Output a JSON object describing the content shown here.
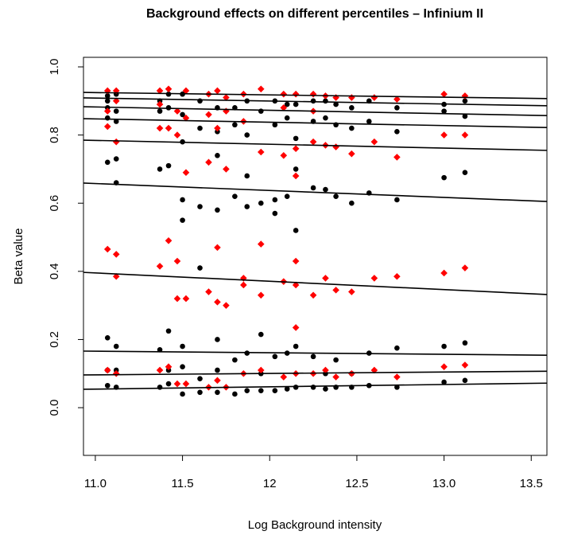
{
  "chart_data": {
    "type": "scatter",
    "title": "Background effects on different percentiles – Infinium II",
    "x_label": "Log Background intensity",
    "y_label": "Beta value",
    "xlim": [
      10.932,
      13.59
    ],
    "ylim": [
      -0.14,
      1.028
    ],
    "xticks": [
      {
        "value": 11,
        "label": "11.0"
      },
      11.5,
      12.0,
      12.5,
      {
        "value": 13,
        "label": "13.0"
      },
      13.5
    ],
    "yticks": [
      {
        "value": 0,
        "label": "0.0"
      },
      0.2,
      0.4,
      0.6,
      0.8,
      {
        "value": 1,
        "label": "1.0"
      }
    ],
    "grid": false,
    "series": [
      {
        "color": "#000000",
        "marker": "circle",
        "x": [
          11.07,
          11.07,
          11.07,
          11.07,
          11.07,
          11.07,
          11.07,
          11.07,
          11.12,
          11.12,
          11.12,
          11.12,
          11.12,
          11.12,
          11.12,
          11.12,
          11.37,
          11.37,
          11.37,
          11.37,
          11.37,
          11.42,
          11.42,
          11.42,
          11.42,
          11.42,
          11.42,
          11.5,
          11.5,
          11.5,
          11.5,
          11.5,
          11.5,
          11.5,
          11.5,
          11.6,
          11.6,
          11.6,
          11.6,
          11.6,
          11.6,
          11.7,
          11.7,
          11.7,
          11.7,
          11.7,
          11.7,
          11.7,
          11.8,
          11.8,
          11.8,
          11.8,
          11.8,
          11.87,
          11.87,
          11.87,
          11.87,
          11.87,
          11.87,
          11.95,
          11.95,
          11.95,
          11.95,
          11.95,
          12.03,
          12.03,
          12.03,
          12.03,
          12.03,
          12.03,
          12.1,
          12.1,
          12.1,
          12.1,
          12.1,
          12.15,
          12.15,
          12.15,
          12.15,
          12.15,
          12.15,
          12.25,
          12.25,
          12.25,
          12.25,
          12.25,
          12.32,
          12.32,
          12.32,
          12.32,
          12.32,
          12.38,
          12.38,
          12.38,
          12.38,
          12.38,
          12.47,
          12.47,
          12.47,
          12.47,
          12.47,
          12.57,
          12.57,
          12.57,
          12.57,
          12.57,
          12.73,
          12.73,
          12.73,
          12.73,
          12.73,
          13.0,
          13.0,
          13.0,
          13.0,
          13.0,
          13.12,
          13.12,
          13.12,
          13.12,
          13.12
        ],
        "values": [
          0.065,
          0.11,
          0.205,
          0.72,
          0.85,
          0.88,
          0.9,
          0.915,
          0.06,
          0.11,
          0.18,
          0.66,
          0.73,
          0.84,
          0.87,
          0.92,
          0.06,
          0.17,
          0.7,
          0.87,
          0.9,
          0.07,
          0.11,
          0.225,
          0.71,
          0.88,
          0.92,
          0.04,
          0.12,
          0.18,
          0.55,
          0.61,
          0.78,
          0.86,
          0.92,
          0.045,
          0.085,
          0.41,
          0.59,
          0.82,
          0.9,
          0.045,
          0.11,
          0.2,
          0.58,
          0.74,
          0.81,
          0.88,
          0.04,
          0.14,
          0.62,
          0.83,
          0.88,
          0.05,
          0.16,
          0.59,
          0.68,
          0.8,
          0.9,
          0.05,
          0.1,
          0.215,
          0.6,
          0.87,
          0.05,
          0.15,
          0.57,
          0.61,
          0.83,
          0.9,
          0.055,
          0.16,
          0.62,
          0.85,
          0.89,
          0.06,
          0.18,
          0.52,
          0.7,
          0.79,
          0.89,
          0.06,
          0.15,
          0.645,
          0.84,
          0.9,
          0.055,
          0.1,
          0.64,
          0.85,
          0.9,
          0.06,
          0.14,
          0.62,
          0.83,
          0.89,
          0.06,
          0.1,
          0.6,
          0.82,
          0.88,
          0.065,
          0.16,
          0.63,
          0.84,
          0.9,
          0.06,
          0.175,
          0.61,
          0.81,
          0.88,
          0.075,
          0.18,
          0.675,
          0.87,
          0.89,
          0.08,
          0.19,
          0.69,
          0.855,
          0.9
        ]
      },
      {
        "color": "#ff0000",
        "marker": "diamond",
        "x": [
          11.07,
          11.07,
          11.07,
          11.07,
          11.07,
          11.12,
          11.12,
          11.12,
          11.12,
          11.12,
          11.12,
          11.37,
          11.37,
          11.37,
          11.37,
          11.37,
          11.42,
          11.42,
          11.42,
          11.42,
          11.47,
          11.47,
          11.47,
          11.47,
          11.47,
          11.52,
          11.52,
          11.52,
          11.52,
          11.52,
          11.65,
          11.65,
          11.65,
          11.65,
          11.65,
          11.7,
          11.7,
          11.7,
          11.7,
          11.7,
          11.75,
          11.75,
          11.75,
          11.75,
          11.75,
          11.85,
          11.85,
          11.85,
          11.85,
          11.85,
          11.95,
          11.95,
          11.95,
          11.95,
          11.95,
          12.08,
          12.08,
          12.08,
          12.08,
          12.08,
          12.15,
          12.15,
          12.15,
          12.15,
          12.15,
          12.15,
          12.15,
          12.25,
          12.25,
          12.25,
          12.25,
          12.25,
          12.32,
          12.32,
          12.32,
          12.32,
          12.38,
          12.38,
          12.38,
          12.38,
          12.47,
          12.47,
          12.47,
          12.47,
          12.6,
          12.6,
          12.6,
          12.6,
          12.73,
          12.73,
          12.73,
          12.73,
          13.0,
          13.0,
          13.0,
          13.0,
          13.12,
          13.12,
          13.12,
          13.12
        ],
        "values": [
          0.11,
          0.465,
          0.825,
          0.87,
          0.93,
          0.1,
          0.385,
          0.45,
          0.78,
          0.9,
          0.93,
          0.11,
          0.415,
          0.82,
          0.89,
          0.93,
          0.12,
          0.49,
          0.82,
          0.935,
          0.07,
          0.32,
          0.43,
          0.8,
          0.87,
          0.07,
          0.32,
          0.69,
          0.85,
          0.93,
          0.06,
          0.34,
          0.72,
          0.86,
          0.92,
          0.08,
          0.31,
          0.47,
          0.82,
          0.93,
          0.06,
          0.3,
          0.7,
          0.87,
          0.91,
          0.1,
          0.36,
          0.38,
          0.84,
          0.92,
          0.11,
          0.33,
          0.48,
          0.75,
          0.935,
          0.09,
          0.37,
          0.74,
          0.88,
          0.92,
          0.1,
          0.235,
          0.36,
          0.43,
          0.68,
          0.76,
          0.92,
          0.1,
          0.33,
          0.78,
          0.87,
          0.92,
          0.11,
          0.38,
          0.77,
          0.915,
          0.09,
          0.345,
          0.765,
          0.91,
          0.1,
          0.34,
          0.745,
          0.91,
          0.11,
          0.38,
          0.78,
          0.91,
          0.09,
          0.385,
          0.735,
          0.905,
          0.12,
          0.395,
          0.8,
          0.92,
          0.125,
          0.41,
          0.8,
          0.915
        ]
      }
    ],
    "lines": [
      {
        "color": "#000000",
        "values": [
          0.925,
          0.907
        ]
      },
      {
        "color": "#000000",
        "values": [
          0.909,
          0.886
        ]
      },
      {
        "color": "#000000",
        "values": [
          0.883,
          0.857
        ]
      },
      {
        "color": "#000000",
        "values": [
          0.848,
          0.822
        ]
      },
      {
        "color": "#000000",
        "values": [
          0.785,
          0.755
        ]
      },
      {
        "color": "#000000",
        "values": [
          0.659,
          0.605
        ]
      },
      {
        "color": "#000000",
        "values": [
          0.397,
          0.332
        ]
      },
      {
        "color": "#000000",
        "values": [
          0.166,
          0.154
        ]
      },
      {
        "color": "#000000",
        "values": [
          0.096,
          0.107
        ]
      },
      {
        "color": "#000000",
        "values": [
          0.054,
          0.072
        ]
      }
    ]
  }
}
